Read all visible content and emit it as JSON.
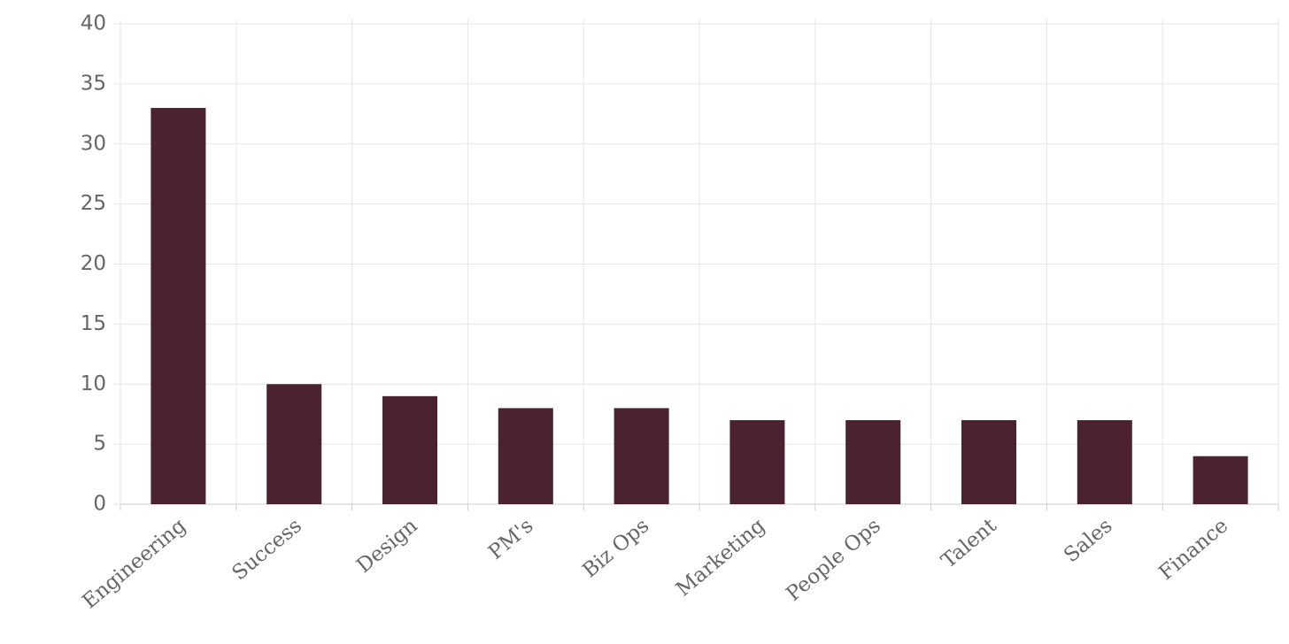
{
  "chart_data": {
    "type": "bar",
    "categories": [
      "Engineering",
      "Success",
      "Design",
      "PM's",
      "Biz Ops",
      "Marketing",
      "People Ops",
      "Talent",
      "Sales",
      "Finance"
    ],
    "values": [
      33,
      10,
      9,
      8,
      8,
      7,
      7,
      7,
      7,
      4
    ],
    "color": "#4a2230",
    "ylim": [
      0,
      40
    ],
    "yticks": [
      0,
      5,
      10,
      15,
      20,
      25,
      30,
      35,
      40
    ],
    "grid": true
  }
}
